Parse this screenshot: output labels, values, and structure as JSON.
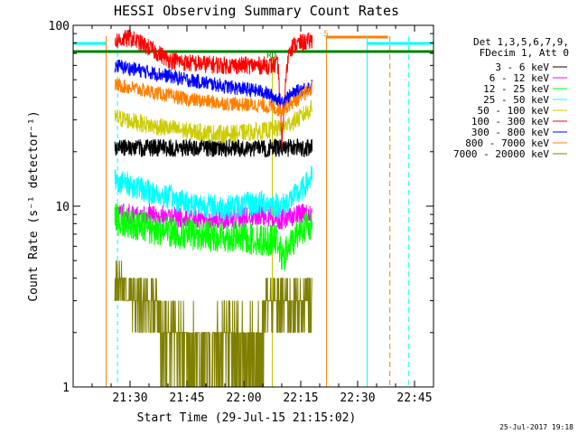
{
  "chart_data": {
    "type": "line",
    "title": "HESSI Observing Summary Count Rates",
    "xlabel": "Start Time (29-Jul-15 21:15:02)",
    "ylabel": "Count Rate (s⁻¹ detector⁻¹)",
    "y_scale": "log",
    "ylim": [
      1,
      100
    ],
    "x_unit": "minutes after 21:15:02",
    "xlim": [
      0,
      95
    ],
    "x_ticks": [
      {
        "label": "21:30",
        "t": 15
      },
      {
        "label": "21:45",
        "t": 30
      },
      {
        "label": "22:00",
        "t": 45
      },
      {
        "label": "22:15",
        "t": 60
      },
      {
        "label": "22:30",
        "t": 75
      },
      {
        "label": "22:45",
        "t": 90
      }
    ],
    "y_ticks": [
      {
        "label": "1",
        "value": 1
      },
      {
        "label": "10",
        "value": 10
      },
      {
        "label": "100",
        "value": 100
      }
    ],
    "legend_header": [
      "Det 1,3,5,6,7,9,",
      "FDecim 1, Att 0"
    ],
    "legend_position": "right",
    "series": [
      {
        "name": "3 - 6 keV",
        "color": "#000000",
        "x": [
          11,
          20,
          30,
          40,
          50,
          55,
          60,
          63
        ],
        "values": [
          21,
          21,
          21,
          21,
          21,
          21,
          21,
          21
        ]
      },
      {
        "name": "6 - 12 keV",
        "color": "#ff00ff",
        "x": [
          11,
          20,
          30,
          40,
          50,
          55,
          60,
          63
        ],
        "values": [
          9,
          9,
          8.5,
          8.5,
          9,
          8.5,
          9,
          9
        ]
      },
      {
        "name": "12 - 25 keV",
        "color": "#00ff00",
        "x": [
          11,
          20,
          30,
          40,
          50,
          54,
          55,
          60,
          63
        ],
        "values": [
          8.5,
          7.5,
          7,
          6.8,
          6.5,
          6.5,
          5,
          7.5,
          8
        ]
      },
      {
        "name": "25 - 50 keV",
        "color": "#00ffff",
        "x": [
          11,
          20,
          30,
          40,
          50,
          55,
          60,
          63
        ],
        "values": [
          14,
          12,
          10.5,
          9.8,
          10.5,
          10,
          12,
          14.5
        ]
      },
      {
        "name": "50 - 100 keV",
        "color": "#cccc00",
        "x": [
          11,
          20,
          30,
          40,
          50,
          55,
          60,
          63
        ],
        "values": [
          31,
          28,
          26,
          25,
          26,
          27,
          31,
          35
        ]
      },
      {
        "name": "100 - 300 keV",
        "color": "#ff0000",
        "x": [
          11,
          15,
          20,
          25,
          30,
          40,
          50,
          54,
          55,
          57,
          60,
          63
        ],
        "values": [
          82,
          85,
          75,
          65,
          62,
          60,
          60,
          60,
          20,
          75,
          80,
          82
        ]
      },
      {
        "name": "300 - 800 keV",
        "color": "#0000ff",
        "x": [
          11,
          20,
          30,
          40,
          50,
          55,
          60,
          63
        ],
        "values": [
          60,
          55,
          50,
          46,
          43,
          38,
          44,
          46
        ]
      },
      {
        "name": "800 - 7000 keV",
        "color": "#ff8000",
        "x": [
          11,
          20,
          30,
          40,
          50,
          55,
          60,
          63
        ],
        "values": [
          47,
          43,
          39,
          37,
          36,
          34,
          40,
          45
        ]
      },
      {
        "name": "7000 - 20000 keV",
        "color": "#808000",
        "x": [
          11,
          17,
          18,
          22,
          23,
          30,
          35,
          40,
          45,
          50,
          51,
          55,
          56,
          60,
          63
        ],
        "values": [
          4,
          3,
          2.9,
          3,
          2,
          1.8,
          1.4,
          1.9,
          1.5,
          1.7,
          3,
          2.9,
          3,
          2.9,
          3
        ]
      }
    ],
    "annotations": [
      {
        "text": "RD",
        "t": 51,
        "value": 66,
        "color": "#008000"
      },
      {
        "text": "S",
        "t": 66,
        "value": 87,
        "color": "#ff8000"
      }
    ],
    "timestamp": "25-Jul-2017 19:18"
  }
}
